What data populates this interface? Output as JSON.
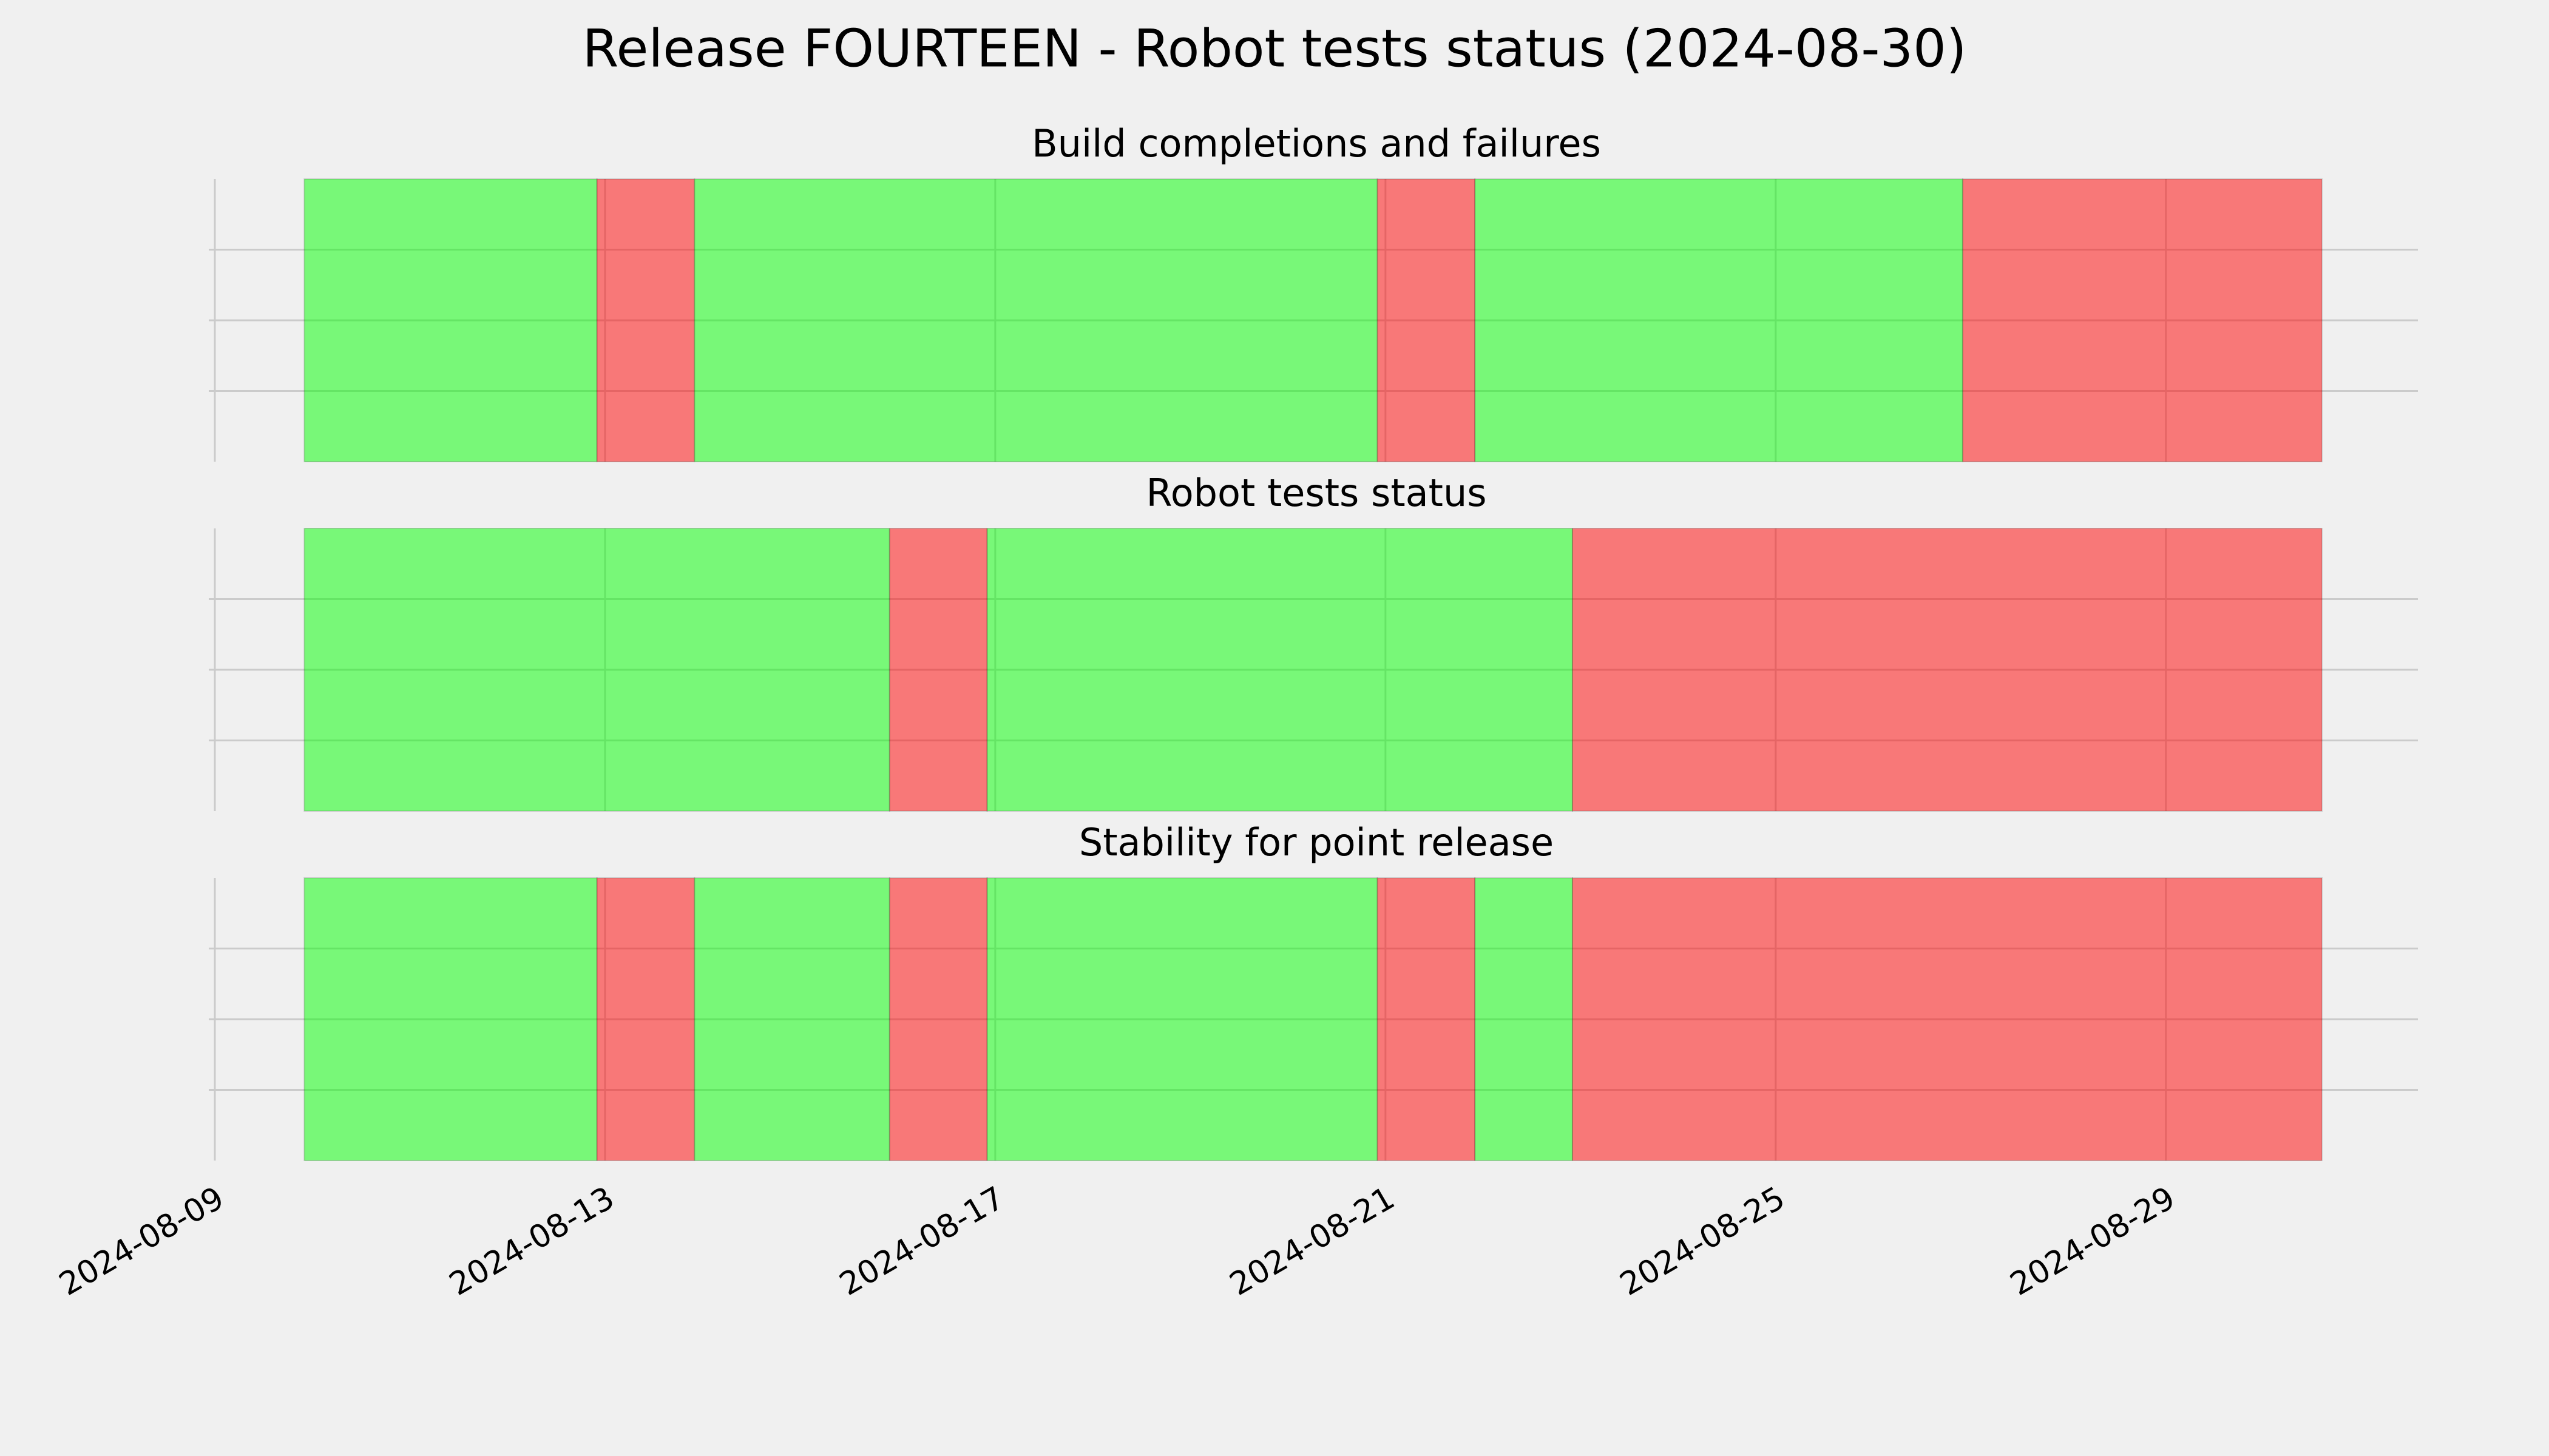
{
  "title": "Release FOURTEEN - Robot tests status (2024-08-30)",
  "chart_data": [
    {
      "type": "span",
      "title": "Build completions and failures",
      "xlim": [
        "2024-08-09T00:00",
        "2024-08-31T14:00"
      ],
      "xticks": [
        "2024-08-09",
        "2024-08-13",
        "2024-08-17",
        "2024-08-21",
        "2024-08-25",
        "2024-08-29"
      ],
      "ylim": [
        0,
        1
      ],
      "yticks": [
        0.25,
        0.5,
        0.75
      ],
      "grid": true,
      "spans": [
        {
          "start": "2024-08-09T22:00",
          "end": "2024-08-12T22:00",
          "color": "#00ff00"
        },
        {
          "start": "2024-08-12T22:00",
          "end": "2024-08-13T22:00",
          "color": "#ff0000"
        },
        {
          "start": "2024-08-13T22:00",
          "end": "2024-08-20T22:00",
          "color": "#00ff00"
        },
        {
          "start": "2024-08-20T22:00",
          "end": "2024-08-21T22:00",
          "color": "#ff0000"
        },
        {
          "start": "2024-08-21T22:00",
          "end": "2024-08-26T22:00",
          "color": "#00ff00"
        },
        {
          "start": "2024-08-26T22:00",
          "end": "2024-08-30T14:24",
          "color": "#ff0000"
        }
      ]
    },
    {
      "type": "span",
      "title": "Robot tests status",
      "xlim": [
        "2024-08-09T00:00",
        "2024-08-31T14:00"
      ],
      "xticks": [
        "2024-08-09",
        "2024-08-13",
        "2024-08-17",
        "2024-08-21",
        "2024-08-25",
        "2024-08-29"
      ],
      "ylim": [
        0,
        1
      ],
      "yticks": [
        0.25,
        0.5,
        0.75
      ],
      "grid": true,
      "spans": [
        {
          "start": "2024-08-09T22:00",
          "end": "2024-08-15T22:00",
          "color": "#00ff00"
        },
        {
          "start": "2024-08-15T22:00",
          "end": "2024-08-16T22:00",
          "color": "#ff0000"
        },
        {
          "start": "2024-08-16T22:00",
          "end": "2024-08-22T22:00",
          "color": "#00ff00"
        },
        {
          "start": "2024-08-22T22:00",
          "end": "2024-08-30T14:24",
          "color": "#ff0000"
        }
      ]
    },
    {
      "type": "span",
      "title": "Stability for point release",
      "xlim": [
        "2024-08-09T00:00",
        "2024-08-31T14:00"
      ],
      "xticks": [
        "2024-08-09",
        "2024-08-13",
        "2024-08-17",
        "2024-08-21",
        "2024-08-25",
        "2024-08-29"
      ],
      "ylim": [
        0,
        1
      ],
      "yticks": [
        0.25,
        0.5,
        0.75
      ],
      "grid": true,
      "spans": [
        {
          "start": "2024-08-09T22:00",
          "end": "2024-08-12T22:00",
          "color": "#00ff00"
        },
        {
          "start": "2024-08-12T22:00",
          "end": "2024-08-13T22:00",
          "color": "#ff0000"
        },
        {
          "start": "2024-08-13T22:00",
          "end": "2024-08-15T22:00",
          "color": "#00ff00"
        },
        {
          "start": "2024-08-15T22:00",
          "end": "2024-08-16T22:00",
          "color": "#ff0000"
        },
        {
          "start": "2024-08-16T22:00",
          "end": "2024-08-20T22:00",
          "color": "#00ff00"
        },
        {
          "start": "2024-08-20T22:00",
          "end": "2024-08-21T22:00",
          "color": "#ff0000"
        },
        {
          "start": "2024-08-21T22:00",
          "end": "2024-08-22T22:00",
          "color": "#00ff00"
        },
        {
          "start": "2024-08-22T22:00",
          "end": "2024-08-30T14:24",
          "color": "#ff0000"
        }
      ]
    }
  ]
}
